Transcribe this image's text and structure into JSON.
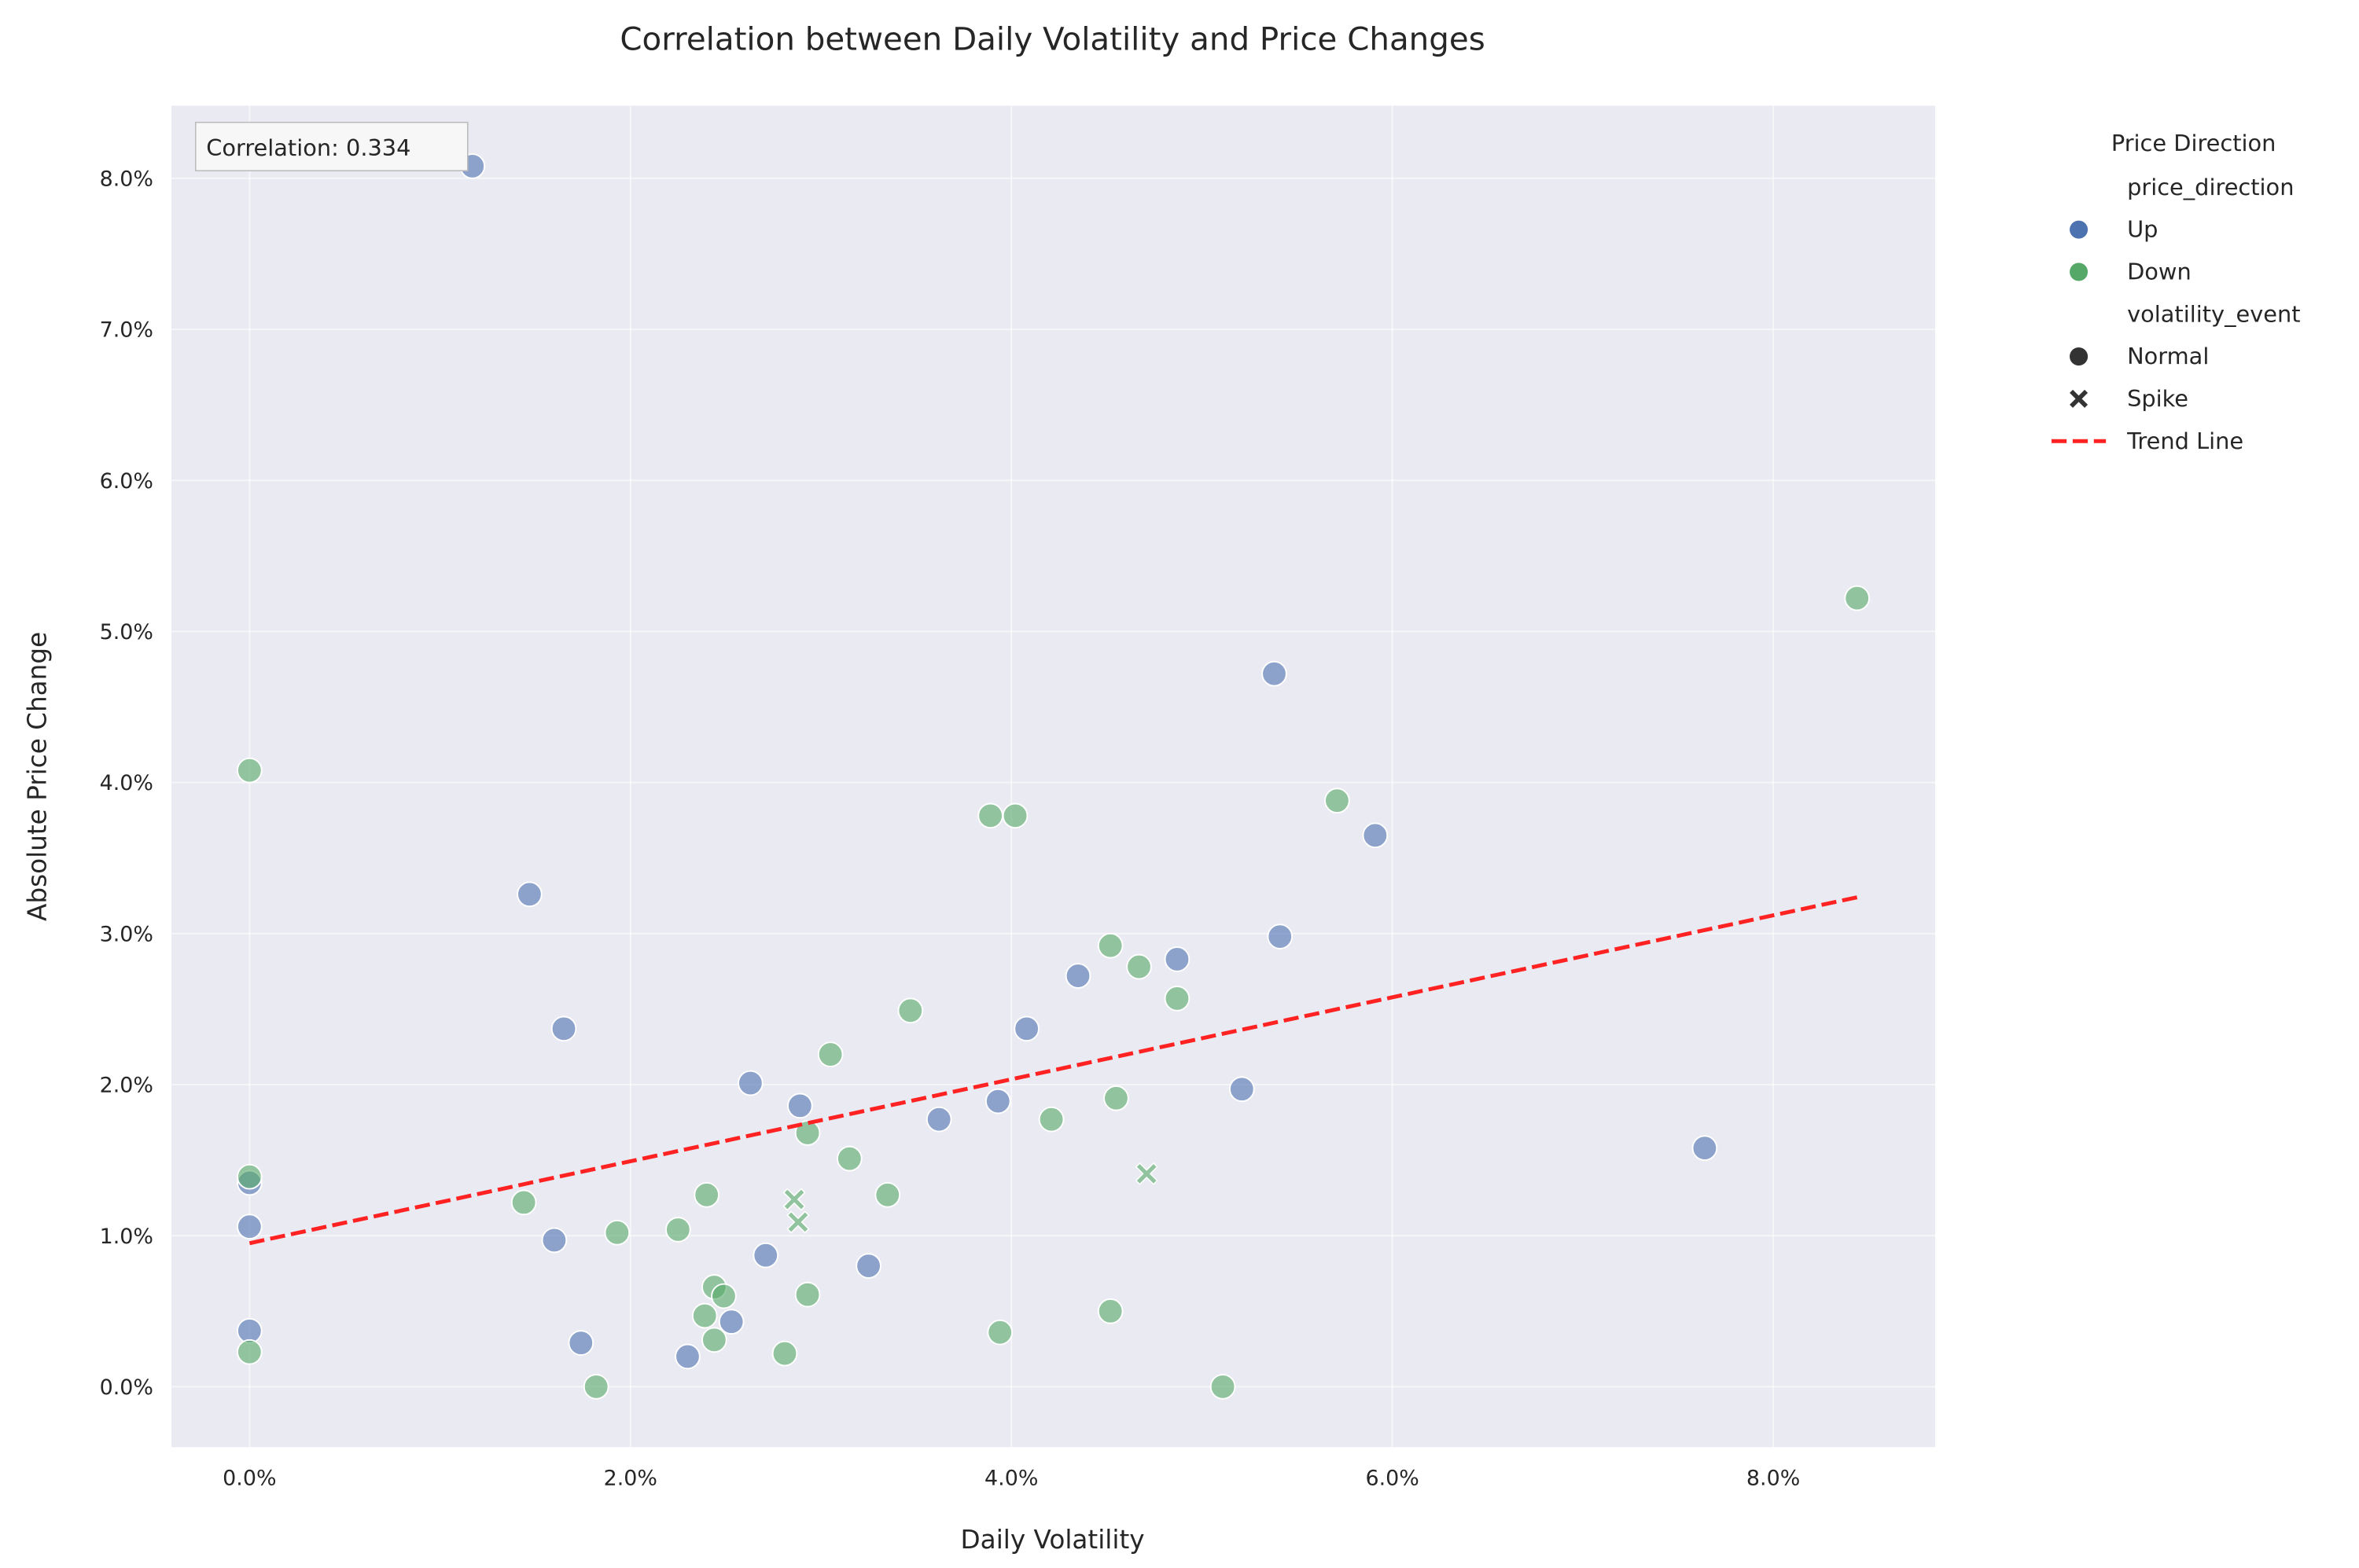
{
  "chart_data": {
    "type": "scatter",
    "title": "Correlation between Daily Volatility and Price Changes",
    "xlabel": "Daily Volatility",
    "ylabel": "Absolute Price Change",
    "xlim": [
      -0.41,
      8.85
    ],
    "ylim": [
      -0.4,
      8.48
    ],
    "x_ticks": [
      0,
      2,
      4,
      6,
      8
    ],
    "x_tick_labels": [
      "0.0%",
      "2.0%",
      "4.0%",
      "6.0%",
      "8.0%"
    ],
    "y_ticks": [
      0,
      1,
      2,
      3,
      4,
      5,
      6,
      7,
      8
    ],
    "y_tick_labels": [
      "0.0%",
      "1.0%",
      "2.0%",
      "3.0%",
      "4.0%",
      "5.0%",
      "6.0%",
      "7.0%",
      "8.0%"
    ],
    "grid": true,
    "annotation": "Correlation: 0.334",
    "colors": {
      "Up": "#4c72b0",
      "Down": "#55a868",
      "trend": "#ff2222",
      "background": "#eaeaf2"
    },
    "legend": {
      "title": "Price Direction",
      "placement": "outside-top-right",
      "entries": [
        {
          "label": "price_direction",
          "kind": "header"
        },
        {
          "label": "Up",
          "kind": "circle",
          "color": "#4c72b0"
        },
        {
          "label": "Down",
          "kind": "circle",
          "color": "#55a868"
        },
        {
          "label": "volatility_event",
          "kind": "header"
        },
        {
          "label": "Normal",
          "kind": "circle",
          "color": "#333333"
        },
        {
          "label": "Spike",
          "kind": "x",
          "color": "#333333"
        },
        {
          "label": "Trend Line",
          "kind": "dash",
          "color": "#ff2222"
        }
      ]
    },
    "series": [
      {
        "name": "Up",
        "marker": "circle",
        "points": [
          [
            1.17,
            8.08
          ],
          [
            1.47,
            3.26
          ],
          [
            1.65,
            2.37
          ],
          [
            0,
            1.35
          ],
          [
            0,
            1.06
          ],
          [
            0,
            0.37
          ],
          [
            1.6,
            0.97
          ],
          [
            1.74,
            0.29
          ],
          [
            2.3,
            0.2
          ],
          [
            2.53,
            0.43
          ],
          [
            2.71,
            0.87
          ],
          [
            3.25,
            0.8
          ],
          [
            2.63,
            2.01
          ],
          [
            2.89,
            1.86
          ],
          [
            3.62,
            1.77
          ],
          [
            3.93,
            1.89
          ],
          [
            4.08,
            2.37
          ],
          [
            4.35,
            2.72
          ],
          [
            4.87,
            2.83
          ],
          [
            5.21,
            1.97
          ],
          [
            5.38,
            4.72
          ],
          [
            5.41,
            2.98
          ],
          [
            5.91,
            3.65
          ],
          [
            7.64,
            1.58
          ]
        ]
      },
      {
        "name": "Down",
        "marker": "circle",
        "points": [
          [
            0,
            4.08
          ],
          [
            0,
            1.39
          ],
          [
            0,
            0.23
          ],
          [
            1.44,
            1.22
          ],
          [
            1.82,
            0.0
          ],
          [
            1.93,
            1.02
          ],
          [
            2.25,
            1.04
          ],
          [
            2.4,
            1.27
          ],
          [
            2.44,
            0.66
          ],
          [
            2.49,
            0.6
          ],
          [
            2.39,
            0.47
          ],
          [
            2.44,
            0.31
          ],
          [
            2.81,
            0.22
          ],
          [
            2.93,
            1.68
          ],
          [
            2.93,
            0.61
          ],
          [
            3.05,
            2.2
          ],
          [
            3.15,
            1.51
          ],
          [
            3.35,
            1.27
          ],
          [
            3.47,
            2.49
          ],
          [
            3.89,
            3.78
          ],
          [
            4.02,
            3.78
          ],
          [
            3.94,
            0.36
          ],
          [
            4.21,
            1.77
          ],
          [
            4.52,
            2.92
          ],
          [
            4.55,
            1.91
          ],
          [
            4.52,
            0.5
          ],
          [
            4.67,
            2.78
          ],
          [
            4.87,
            2.57
          ],
          [
            5.11,
            0.0
          ],
          [
            5.71,
            3.88
          ],
          [
            8.44,
            5.22
          ]
        ]
      },
      {
        "name": "Down",
        "marker": "x",
        "event": "Spike",
        "points": [
          [
            2.86,
            1.24
          ],
          [
            2.88,
            1.09
          ],
          [
            4.71,
            1.41
          ]
        ]
      }
    ],
    "trend_line": {
      "name": "Trend Line",
      "x": [
        0,
        8.44
      ],
      "y": [
        0.95,
        3.24
      ]
    }
  }
}
